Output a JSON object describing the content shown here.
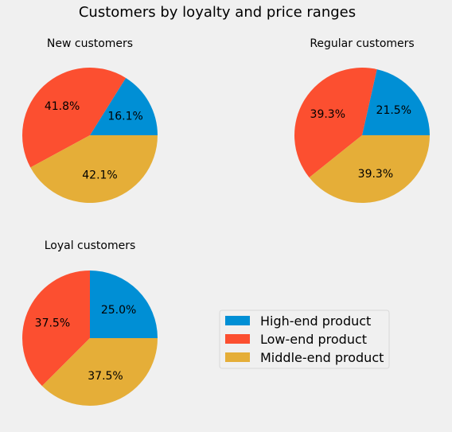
{
  "chart_data": {
    "type": "pie",
    "title": "Customers by loyalty and price ranges",
    "legend": {
      "placement": "center (empty fourth panel)",
      "entries": [
        "High-end product",
        "Low-end product",
        "Middle-end product"
      ]
    },
    "colors": [
      "#008fd5",
      "#fc4f30",
      "#e5ae38"
    ],
    "charts": [
      {
        "title": "New customers",
        "labels": [
          "High-end product",
          "Low-end product",
          "Middle-end product"
        ],
        "values": [
          16.1,
          41.8,
          42.1
        ],
        "value_labels": [
          "16.1%",
          "41.8%",
          "42.1%"
        ]
      },
      {
        "title": "Regular customers",
        "labels": [
          "High-end product",
          "Low-end product",
          "Middle-end product"
        ],
        "values": [
          21.5,
          39.3,
          39.3
        ],
        "value_labels": [
          "21.5%",
          "39.3%",
          "39.3%"
        ]
      },
      {
        "title": "Loyal customers",
        "labels": [
          "High-end product",
          "Low-end product",
          "Middle-end product"
        ],
        "values": [
          25.0,
          37.5,
          37.5
        ],
        "value_labels": [
          "25.0%",
          "37.5%",
          "37.5%"
        ]
      }
    ]
  }
}
